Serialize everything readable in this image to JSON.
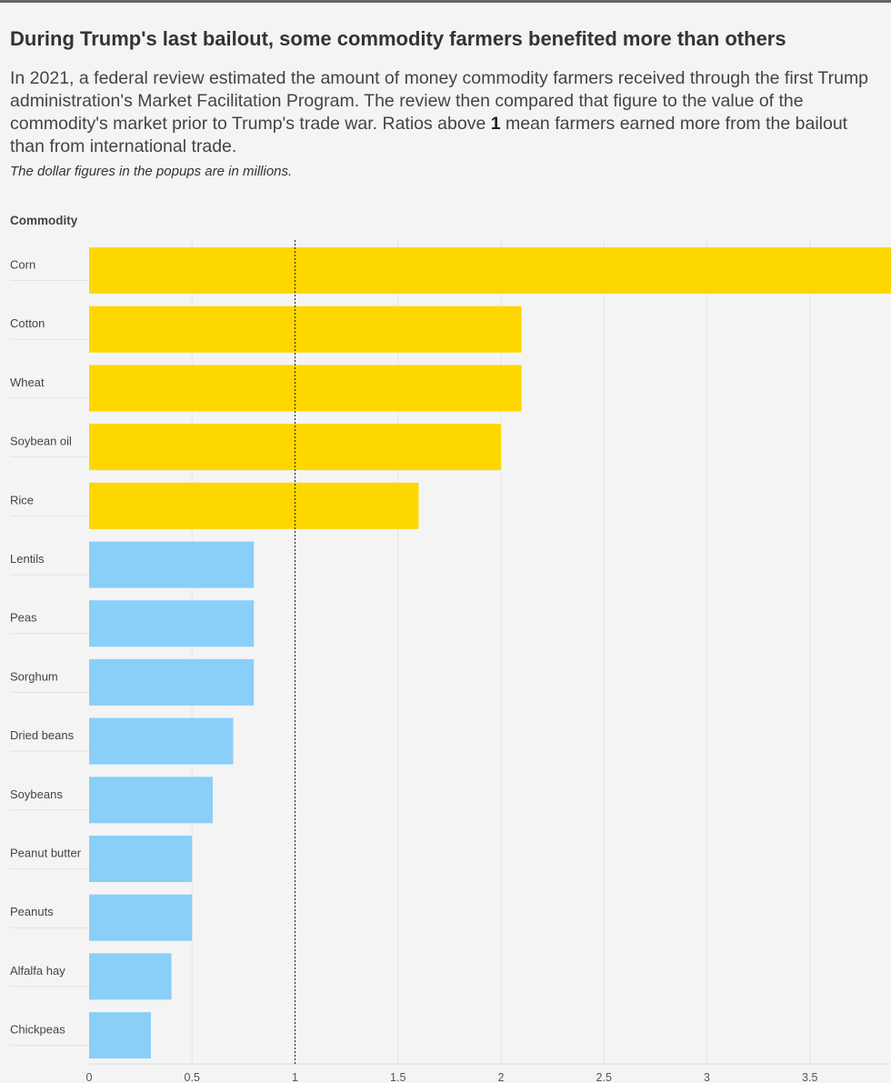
{
  "header": {
    "title": "During Trump's last bailout, some commodity farmers benefited more than others",
    "desc_lines": [
      "In 2021, a federal review estimated the amount of money commodity farmers received through the first Trump",
      "administration's Market Facilitation Program. The review then compared that figure to the value of the",
      "commodity's market prior to Trump's trade war. Ratios above ",
      "1",
      " mean farmers earned more from the bailout",
      "than from international trade."
    ],
    "note": "The dollar figures in the popups are in millions."
  },
  "colors": {
    "above_one": "#ffd700",
    "below_one": "#89cff8",
    "reference_line": "#333333"
  },
  "chart_data": {
    "type": "bar",
    "orientation": "horizontal",
    "title": "During Trump's last bailout, some commodity farmers benefited more than others",
    "ylabel": "Commodity",
    "xlabel": "",
    "xlim": [
      0,
      3.9
    ],
    "x_ticks": [
      "0",
      "0.5",
      "1",
      "1.5",
      "2",
      "2.5",
      "3",
      "3.5"
    ],
    "x_tick_values": [
      0,
      0.5,
      1,
      1.5,
      2,
      2.5,
      3,
      3.5
    ],
    "reference_line": 1,
    "grid": true,
    "categories": [
      "Corn",
      "Cotton",
      "Wheat",
      "Soybean oil",
      "Rice",
      "Lentils",
      "Peas",
      "Sorghum",
      "Dried beans",
      "Soybeans",
      "Peanut butter",
      "Peanuts",
      "Alfalfa hay",
      "Chickpeas"
    ],
    "values": [
      4.0,
      2.1,
      2.1,
      2.0,
      1.6,
      0.8,
      0.8,
      0.8,
      0.7,
      0.6,
      0.5,
      0.5,
      0.4,
      0.3
    ]
  }
}
